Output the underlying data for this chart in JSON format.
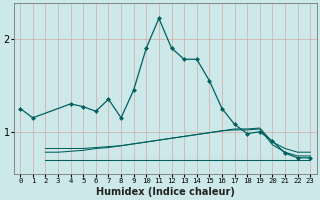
{
  "x": [
    0,
    1,
    2,
    3,
    4,
    5,
    6,
    7,
    8,
    9,
    10,
    11,
    12,
    13,
    14,
    15,
    16,
    17,
    18,
    19,
    20,
    21,
    22,
    23
  ],
  "main_line": [
    1.25,
    1.15,
    null,
    null,
    1.3,
    1.27,
    1.22,
    1.35,
    1.15,
    1.45,
    1.9,
    2.22,
    1.9,
    1.78,
    1.78,
    1.55,
    1.25,
    1.08,
    0.98,
    1.0,
    0.9,
    0.77,
    0.72,
    0.72
  ],
  "flat_line1": [
    null,
    null,
    0.82,
    0.82,
    0.82,
    0.82,
    0.83,
    0.84,
    0.85,
    0.87,
    0.89,
    0.91,
    0.93,
    0.95,
    0.97,
    0.99,
    1.01,
    1.03,
    1.03,
    1.04,
    0.89,
    0.82,
    0.78,
    0.78
  ],
  "flat_line2": [
    null,
    null,
    0.78,
    0.78,
    0.79,
    0.8,
    0.82,
    0.83,
    0.85,
    0.87,
    0.89,
    0.91,
    0.93,
    0.95,
    0.97,
    0.99,
    1.01,
    1.02,
    1.02,
    1.03,
    0.86,
    0.78,
    0.74,
    0.74
  ],
  "flat_line3": [
    null,
    null,
    0.7,
    0.7,
    0.7,
    0.7,
    0.7,
    0.7,
    0.7,
    0.7,
    0.7,
    0.7,
    0.7,
    0.7,
    0.7,
    0.7,
    0.7,
    0.7,
    0.7,
    0.7,
    0.7,
    0.7,
    0.7,
    0.7
  ],
  "bg_color": "#cce8e8",
  "grid_color": "#d4aaaa",
  "line_color": "#006060",
  "xlabel": "Humidex (Indice chaleur)",
  "yticks": [
    1,
    2
  ],
  "xlim": [
    -0.5,
    23.5
  ],
  "ylim": [
    0.55,
    2.38
  ],
  "figsize": [
    3.2,
    2.0
  ],
  "dpi": 100
}
